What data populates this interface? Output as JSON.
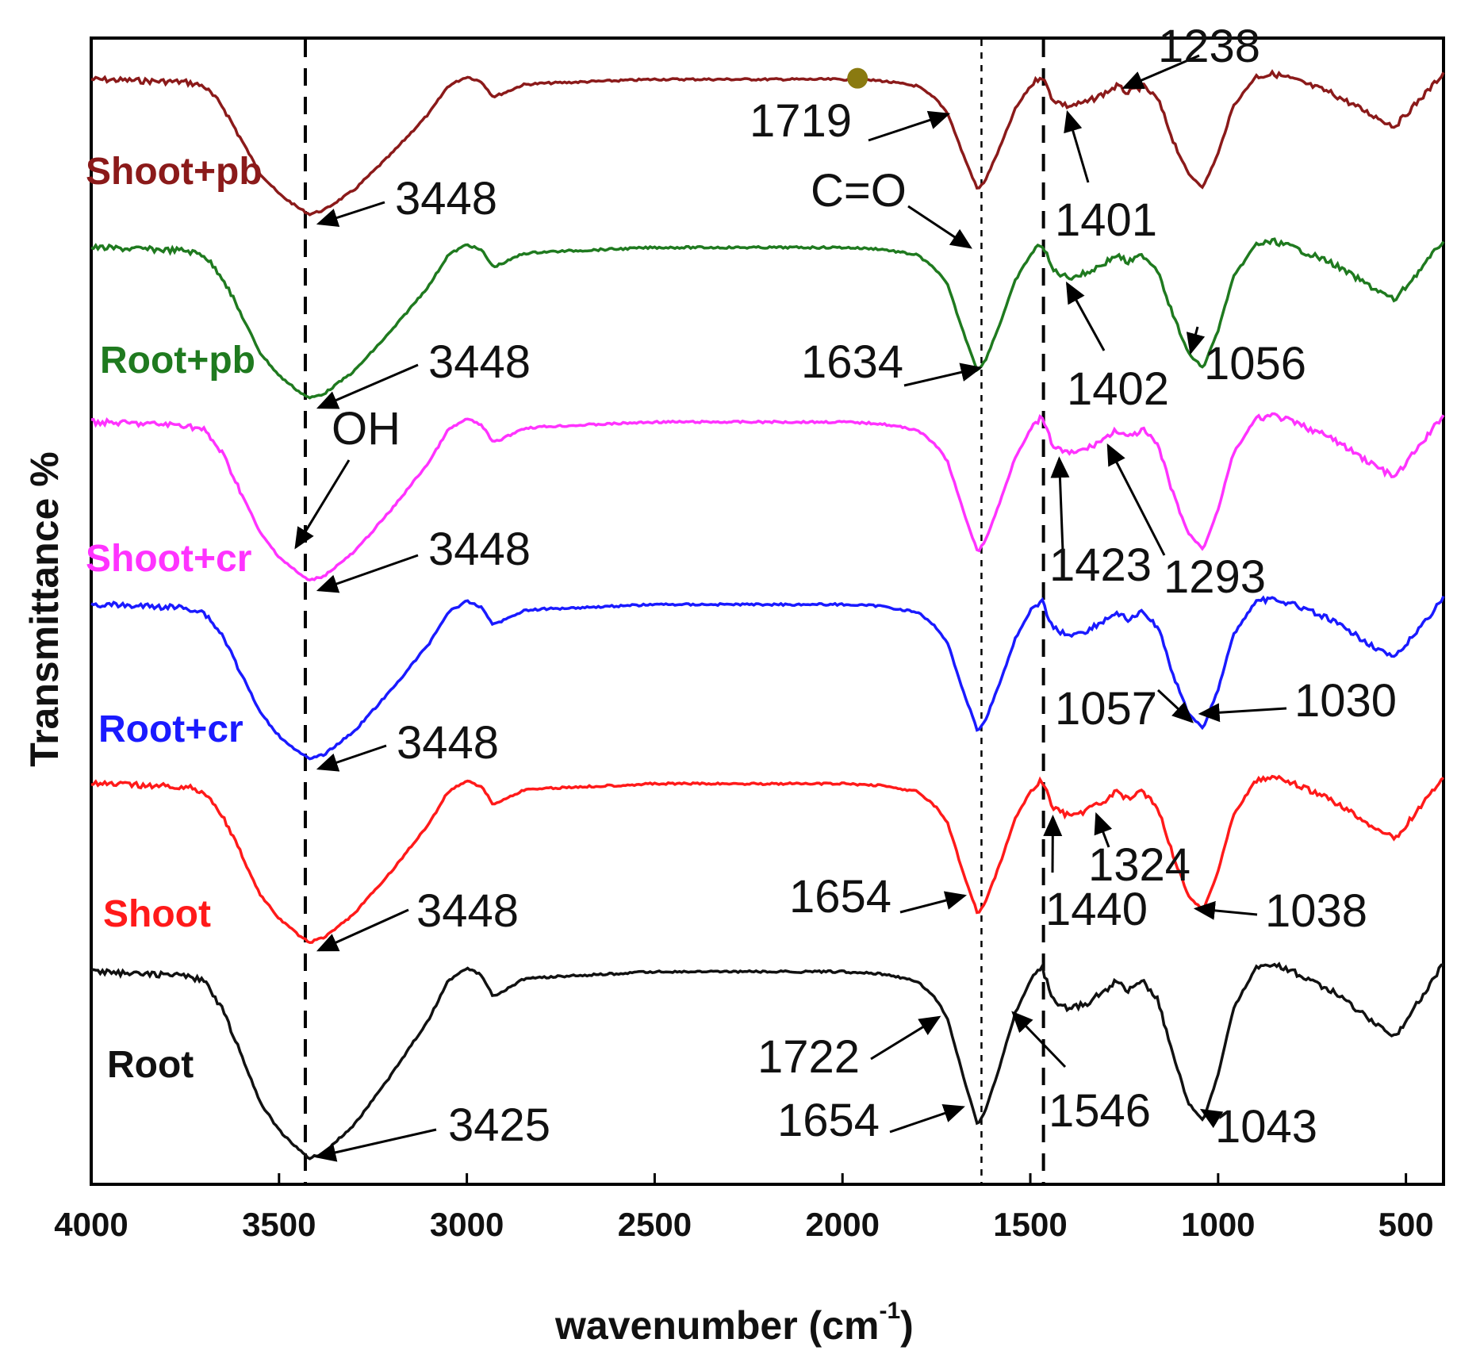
{
  "chart_data": {
    "type": "line",
    "title": "",
    "xlabel": "wavenumber (cm",
    "xlabel_sup": "-1",
    "xlabel_close": ")",
    "ylabel": "Transmittance %",
    "xlim": [
      4000,
      400
    ],
    "x_reversed": true,
    "x_ticks": [
      4000,
      3500,
      3000,
      2500,
      2000,
      1500,
      1000,
      500
    ],
    "y_ticks_visible": false,
    "grid": false,
    "legend": "inline labels at left of each trace",
    "reference_lines": [
      {
        "x": 3430,
        "style": "long-dash"
      },
      {
        "x": 1630,
        "style": "short-dash"
      },
      {
        "x": 1465,
        "style": "long-dash"
      }
    ],
    "series": [
      {
        "name": "Shoot+pb",
        "color": "#8b1a1a",
        "offset": 5,
        "scale": 1.0,
        "label_y": 0.72
      },
      {
        "name": "Root+pb",
        "color": "#1f7a1f",
        "offset": 4,
        "scale": 1.0,
        "label_y": 0.72
      },
      {
        "name": "Shoot+cr",
        "color": "#ff33ff",
        "offset": 3,
        "scale": 1.0,
        "label_y": 0.72
      },
      {
        "name": "Root+cr",
        "color": "#1a1aff",
        "offset": 2,
        "scale": 1.0,
        "label_y": 0.9
      },
      {
        "name": "Shoot",
        "color": "#ff1a1a",
        "offset": 1,
        "scale": 1.0,
        "label_y": 0.9
      },
      {
        "name": "Root",
        "color": "#111111",
        "offset": 0,
        "scale": 1.12,
        "label_y": 0.55
      }
    ],
    "shape_points": [
      [
        4000,
        0
      ],
      [
        3750,
        -0.02
      ],
      [
        3700,
        -0.05
      ],
      [
        3650,
        -0.2
      ],
      [
        3600,
        -0.45
      ],
      [
        3550,
        -0.7
      ],
      [
        3500,
        -0.85
      ],
      [
        3450,
        -0.95
      ],
      [
        3420,
        -1.0
      ],
      [
        3380,
        -0.97
      ],
      [
        3300,
        -0.82
      ],
      [
        3200,
        -0.55
      ],
      [
        3100,
        -0.25
      ],
      [
        3050,
        -0.05
      ],
      [
        3000,
        0.02
      ],
      [
        2960,
        -0.02
      ],
      [
        2930,
        -0.13
      ],
      [
        2900,
        -0.1
      ],
      [
        2850,
        -0.04
      ],
      [
        2800,
        -0.03
      ],
      [
        2500,
        0
      ],
      [
        2000,
        0
      ],
      [
        1900,
        -0.01
      ],
      [
        1800,
        -0.05
      ],
      [
        1750,
        -0.15
      ],
      [
        1720,
        -0.25
      ],
      [
        1680,
        -0.55
      ],
      [
        1640,
        -0.82
      ],
      [
        1620,
        -0.75
      ],
      [
        1580,
        -0.5
      ],
      [
        1540,
        -0.22
      ],
      [
        1500,
        -0.05
      ],
      [
        1470,
        0.03
      ],
      [
        1440,
        -0.15
      ],
      [
        1400,
        -0.2
      ],
      [
        1350,
        -0.17
      ],
      [
        1300,
        -0.1
      ],
      [
        1270,
        -0.05
      ],
      [
        1240,
        -0.1
      ],
      [
        1200,
        -0.05
      ],
      [
        1160,
        -0.15
      ],
      [
        1120,
        -0.45
      ],
      [
        1080,
        -0.7
      ],
      [
        1040,
        -0.8
      ],
      [
        1000,
        -0.55
      ],
      [
        960,
        -0.2
      ],
      [
        900,
        0.02
      ],
      [
        850,
        0.04
      ],
      [
        800,
        0
      ],
      [
        750,
        -0.05
      ],
      [
        700,
        -0.1
      ],
      [
        600,
        -0.25
      ],
      [
        530,
        -0.35
      ],
      [
        480,
        -0.2
      ],
      [
        430,
        -0.05
      ],
      [
        400,
        0.05
      ]
    ],
    "annotations": [
      {
        "text": "3448",
        "series": "Shoot+pb",
        "target_x": 3420
      },
      {
        "text": "1719",
        "series": "Shoot+pb",
        "target_x": 1719
      },
      {
        "text": "1401",
        "series": "Shoot+pb",
        "target_x": 1401
      },
      {
        "text": "1238",
        "series": "Shoot+pb",
        "target_x": 1238
      },
      {
        "text": "C=O",
        "series": "Shoot+pb",
        "target_x": 1630
      },
      {
        "text": "3448",
        "series": "Root+pb",
        "target_x": 3420
      },
      {
        "text": "1634",
        "series": "Root+pb",
        "target_x": 1634
      },
      {
        "text": "1402",
        "series": "Root+pb",
        "target_x": 1402
      },
      {
        "text": "1056",
        "series": "Root+pb",
        "target_x": 1056
      },
      {
        "text": "OH",
        "series": "Shoot+cr",
        "target_x": 3430
      },
      {
        "text": "3448",
        "series": "Shoot+cr",
        "target_x": 3420
      },
      {
        "text": "1423",
        "series": "Shoot+cr",
        "target_x": 1423
      },
      {
        "text": "1293",
        "series": "Shoot+cr",
        "target_x": 1293
      },
      {
        "text": "3448",
        "series": "Root+cr",
        "target_x": 3420
      },
      {
        "text": "1057",
        "series": "Root+cr",
        "target_x": 1057
      },
      {
        "text": "1030",
        "series": "Root+cr",
        "target_x": 1030
      },
      {
        "text": "3448",
        "series": "Shoot",
        "target_x": 3420
      },
      {
        "text": "1654",
        "series": "Shoot",
        "target_x": 1654
      },
      {
        "text": "1440",
        "series": "Shoot",
        "target_x": 1440
      },
      {
        "text": "1324",
        "series": "Shoot",
        "target_x": 1324
      },
      {
        "text": "1038",
        "series": "Shoot",
        "target_x": 1038
      },
      {
        "text": "1722",
        "series": "Root",
        "target_x": 1722
      },
      {
        "text": "3425",
        "series": "Root",
        "target_x": 3425
      },
      {
        "text": "1654",
        "series": "Root",
        "target_x": 1654
      },
      {
        "text": "1546",
        "series": "Root",
        "target_x": 1546
      },
      {
        "text": "1043",
        "series": "Root",
        "target_x": 1043
      }
    ],
    "marker": {
      "x": 1960,
      "series": "Shoot+pb",
      "color": "#8a7a10"
    }
  }
}
